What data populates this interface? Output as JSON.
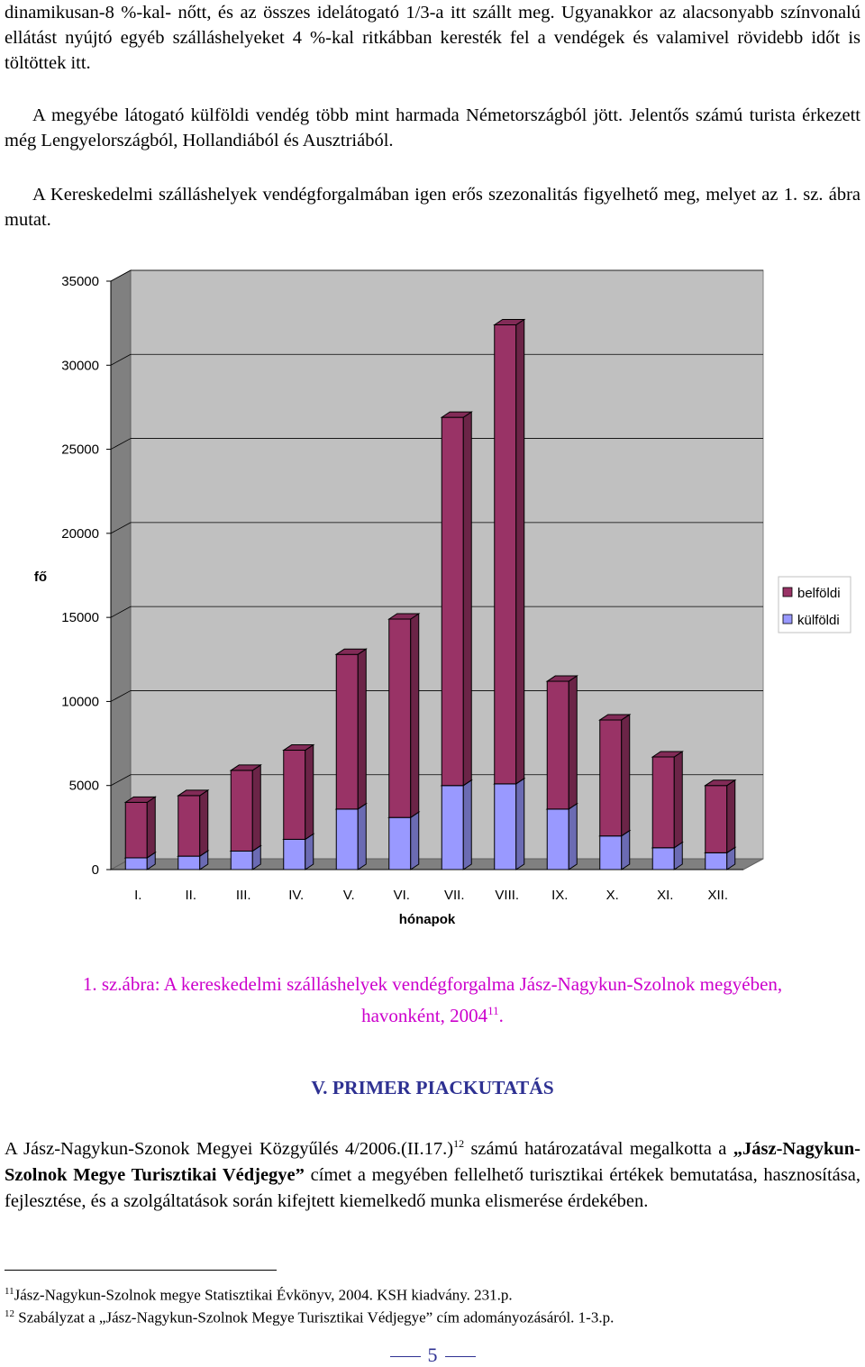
{
  "paragraphs": {
    "p1": "dinamikusan-8 %-kal- nőtt, és az összes idelátogató 1/3-a itt szállt meg. Ugyanakkor az alacsonyabb színvonalú ellátást nyújtó egyéb szálláshelyeket 4 %-kal ritkábban keresték fel a vendégek és valamivel rövidebb időt is töltöttek itt.",
    "p2": "A megyébe látogató külföldi vendég több mint harmada Németországból jött. Jelentős számú turista érkezett még Lengyelországból, Hollandiából és Ausztriából.",
    "p3": "A Kereskedelmi szálláshelyek vendégforgalmában igen erős szezonalitás figyelhető meg, melyet az 1. sz. ábra mutat."
  },
  "chart_data": {
    "type": "bar",
    "stacked": true,
    "three_d": true,
    "categories": [
      "I.",
      "II.",
      "III.",
      "IV.",
      "V.",
      "VI.",
      "VII.",
      "VIII.",
      "IX.",
      "X.",
      "XI.",
      "XII."
    ],
    "series": [
      {
        "name": "külföldi",
        "values": [
          700,
          800,
          1100,
          1800,
          3600,
          3100,
          5000,
          5100,
          3600,
          2000,
          1300,
          1000
        ],
        "color": "#9999ff"
      },
      {
        "name": "belföldi",
        "values": [
          3300,
          3600,
          4800,
          5300,
          9200,
          11800,
          21900,
          27300,
          7600,
          6900,
          5400,
          4000
        ],
        "color": "#993366"
      }
    ],
    "ylim": [
      0,
      35000
    ],
    "yticks": [
      "0",
      "5000",
      "10000",
      "15000",
      "20000",
      "25000",
      "30000",
      "35000"
    ],
    "ylabel": "fő",
    "xlabel": "hónapok",
    "legend_position": "right",
    "legend": [
      "belföldi",
      "külföldi"
    ]
  },
  "caption": {
    "line1": "1. sz.ábra: A kereskedelmi szálláshelyek vendégforgalma Jász-Nagykun-Szolnok megyében,",
    "line2": "havonként, 2004",
    "line2_ref": "11",
    "line2_end": "."
  },
  "section_title": "V. PRIMER PIACKUTATÁS",
  "p4": {
    "part1": "A Jász-Nagykun-Szonok Megyei Közgyűlés 4/2006.(II.17.)",
    "ref": "12",
    "part2": " számú határozatával megalkotta a ",
    "bold": "„Jász-Nagykun-Szolnok Megye Turisztikai Védjegye”",
    "part3": " címet a megyében fellelhető turisztikai értékek bemutatása, hasznosítása, fejlesztése, és a szolgáltatások során kifejtett kiemelkedő munka elismerése érdekében."
  },
  "footnotes": [
    {
      "num": "11",
      "text": "Jász-Nagykun-Szolnok megye Statisztikai Évkönyv, 2004. KSH kiadvány. 231.p."
    },
    {
      "num": "12",
      "text": " Szabályzat a „Jász-Nagykun-Szolnok Megye Turisztikai Védjegye” cím adományozásáról. 1-3.p."
    }
  ],
  "page_number": "5"
}
